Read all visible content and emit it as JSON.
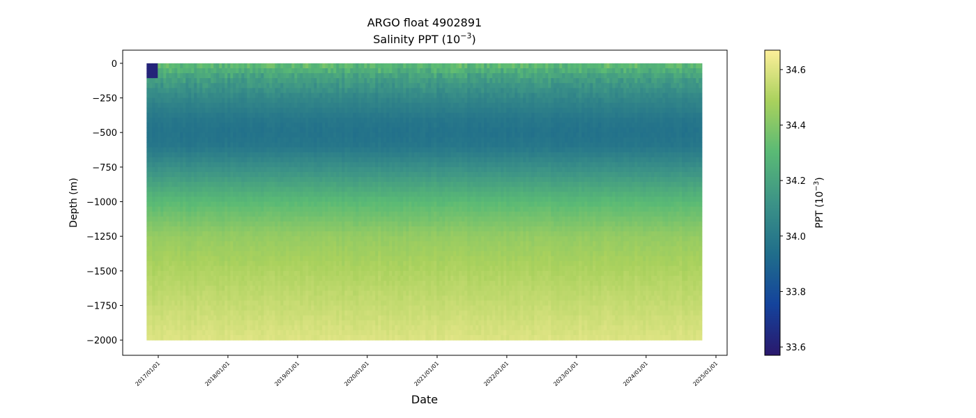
{
  "chart_data": {
    "type": "heatmap",
    "title": "ARGO float 4902891",
    "subtitle_prefix": "Salinity PPT (10",
    "subtitle_exp": "−3",
    "subtitle_suffix": ")",
    "xlabel": "Date",
    "ylabel": "Depth (m)",
    "colorbar_label_prefix": "PPT (10",
    "colorbar_label_exp": "−3",
    "colorbar_label_suffix": ")",
    "x_ticks": [
      "2017/01/01",
      "2018/01/01",
      "2019/01/01",
      "2020/01/01",
      "2021/01/01",
      "2022/01/01",
      "2023/01/01",
      "2024/01/01",
      "2025/01/01"
    ],
    "y_ticks": [
      0,
      -250,
      -500,
      -750,
      -1000,
      -1250,
      -1500,
      -1750,
      -2000
    ],
    "y_tick_labels": [
      "0",
      "−250",
      "−500",
      "−750",
      "−1000",
      "−1250",
      "−1500",
      "−1750",
      "−2000"
    ],
    "ylim": [
      -2110,
      95
    ],
    "colorbar_ticks": [
      33.6,
      33.8,
      34.0,
      34.2,
      34.4,
      34.6
    ],
    "colorbar_tick_labels": [
      "33.6",
      "33.8",
      "34.0",
      "34.2",
      "34.4",
      "34.6"
    ],
    "colorbar_range": [
      33.57,
      34.67
    ],
    "colormap": "haline",
    "colormap_stops": [
      "#2a186c",
      "#14439c",
      "#206e8b",
      "#3c9387",
      "#5aba75",
      "#a9d15d",
      "#fdef9a"
    ],
    "data_start": "2016/11/01",
    "data_end": "2024/10/20",
    "max_depth": -2000,
    "salinity_profile": {
      "depths": [
        0,
        -100,
        -250,
        -400,
        -500,
        -600,
        -750,
        -1000,
        -1250,
        -1500,
        -1750,
        -2000
      ],
      "values": [
        34.33,
        34.18,
        34.06,
        33.98,
        33.96,
        33.98,
        34.1,
        34.3,
        34.44,
        34.5,
        34.55,
        34.6
      ]
    },
    "grid": false,
    "legend": "colorbar-right"
  }
}
